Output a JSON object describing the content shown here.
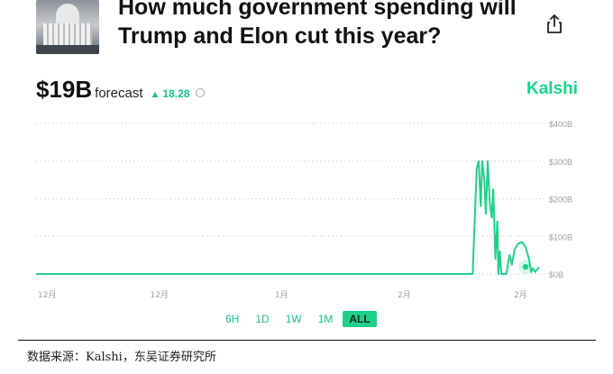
{
  "header": {
    "title_line1": "How much government spending will",
    "title_line2": "Trump and Elon cut this year?",
    "share_icon": "share-icon"
  },
  "summary": {
    "price": "$19B",
    "label": "forecast",
    "delta": "18.28",
    "delta_direction": "up",
    "info_icon": "info-icon"
  },
  "brand": {
    "name": "Kalshi",
    "color": "#19d38c"
  },
  "chart_data": {
    "type": "line",
    "color": "#1fd08b",
    "y_ticks": [
      "$400B",
      "$300B",
      "$200B",
      "$100B",
      "$0B"
    ],
    "ylim": [
      0,
      400
    ],
    "x_ticks": [
      "12月",
      "12月",
      "1月",
      "2月",
      "2月"
    ],
    "grid": true,
    "series": [
      {
        "values": [
          [
            0,
            0
          ],
          [
            0.868,
            0
          ],
          [
            0.876,
            280
          ],
          [
            0.88,
            300
          ],
          [
            0.884,
            180
          ],
          [
            0.887,
            300
          ],
          [
            0.891,
            250
          ],
          [
            0.894,
            160
          ],
          [
            0.898,
            300
          ],
          [
            0.902,
            190
          ],
          [
            0.906,
            150
          ],
          [
            0.909,
            225
          ],
          [
            0.913,
            40
          ],
          [
            0.917,
            140
          ],
          [
            0.919,
            0
          ],
          [
            0.922,
            60
          ],
          [
            0.925,
            0
          ],
          [
            0.935,
            0
          ],
          [
            0.941,
            50
          ],
          [
            0.946,
            25
          ],
          [
            0.951,
            65
          ],
          [
            0.958,
            80
          ],
          [
            0.966,
            85
          ],
          [
            0.973,
            72
          ],
          [
            0.98,
            40
          ],
          [
            0.984,
            5
          ],
          [
            0.988,
            15
          ],
          [
            0.992,
            5
          ],
          [
            1.0,
            18
          ]
        ]
      }
    ],
    "last_value": 19
  },
  "ranges": {
    "items": [
      "6H",
      "1D",
      "1W",
      "1M",
      "ALL"
    ],
    "active": "ALL"
  },
  "footer": {
    "source": "数据来源：Kalshi，东吴证券研究所"
  }
}
